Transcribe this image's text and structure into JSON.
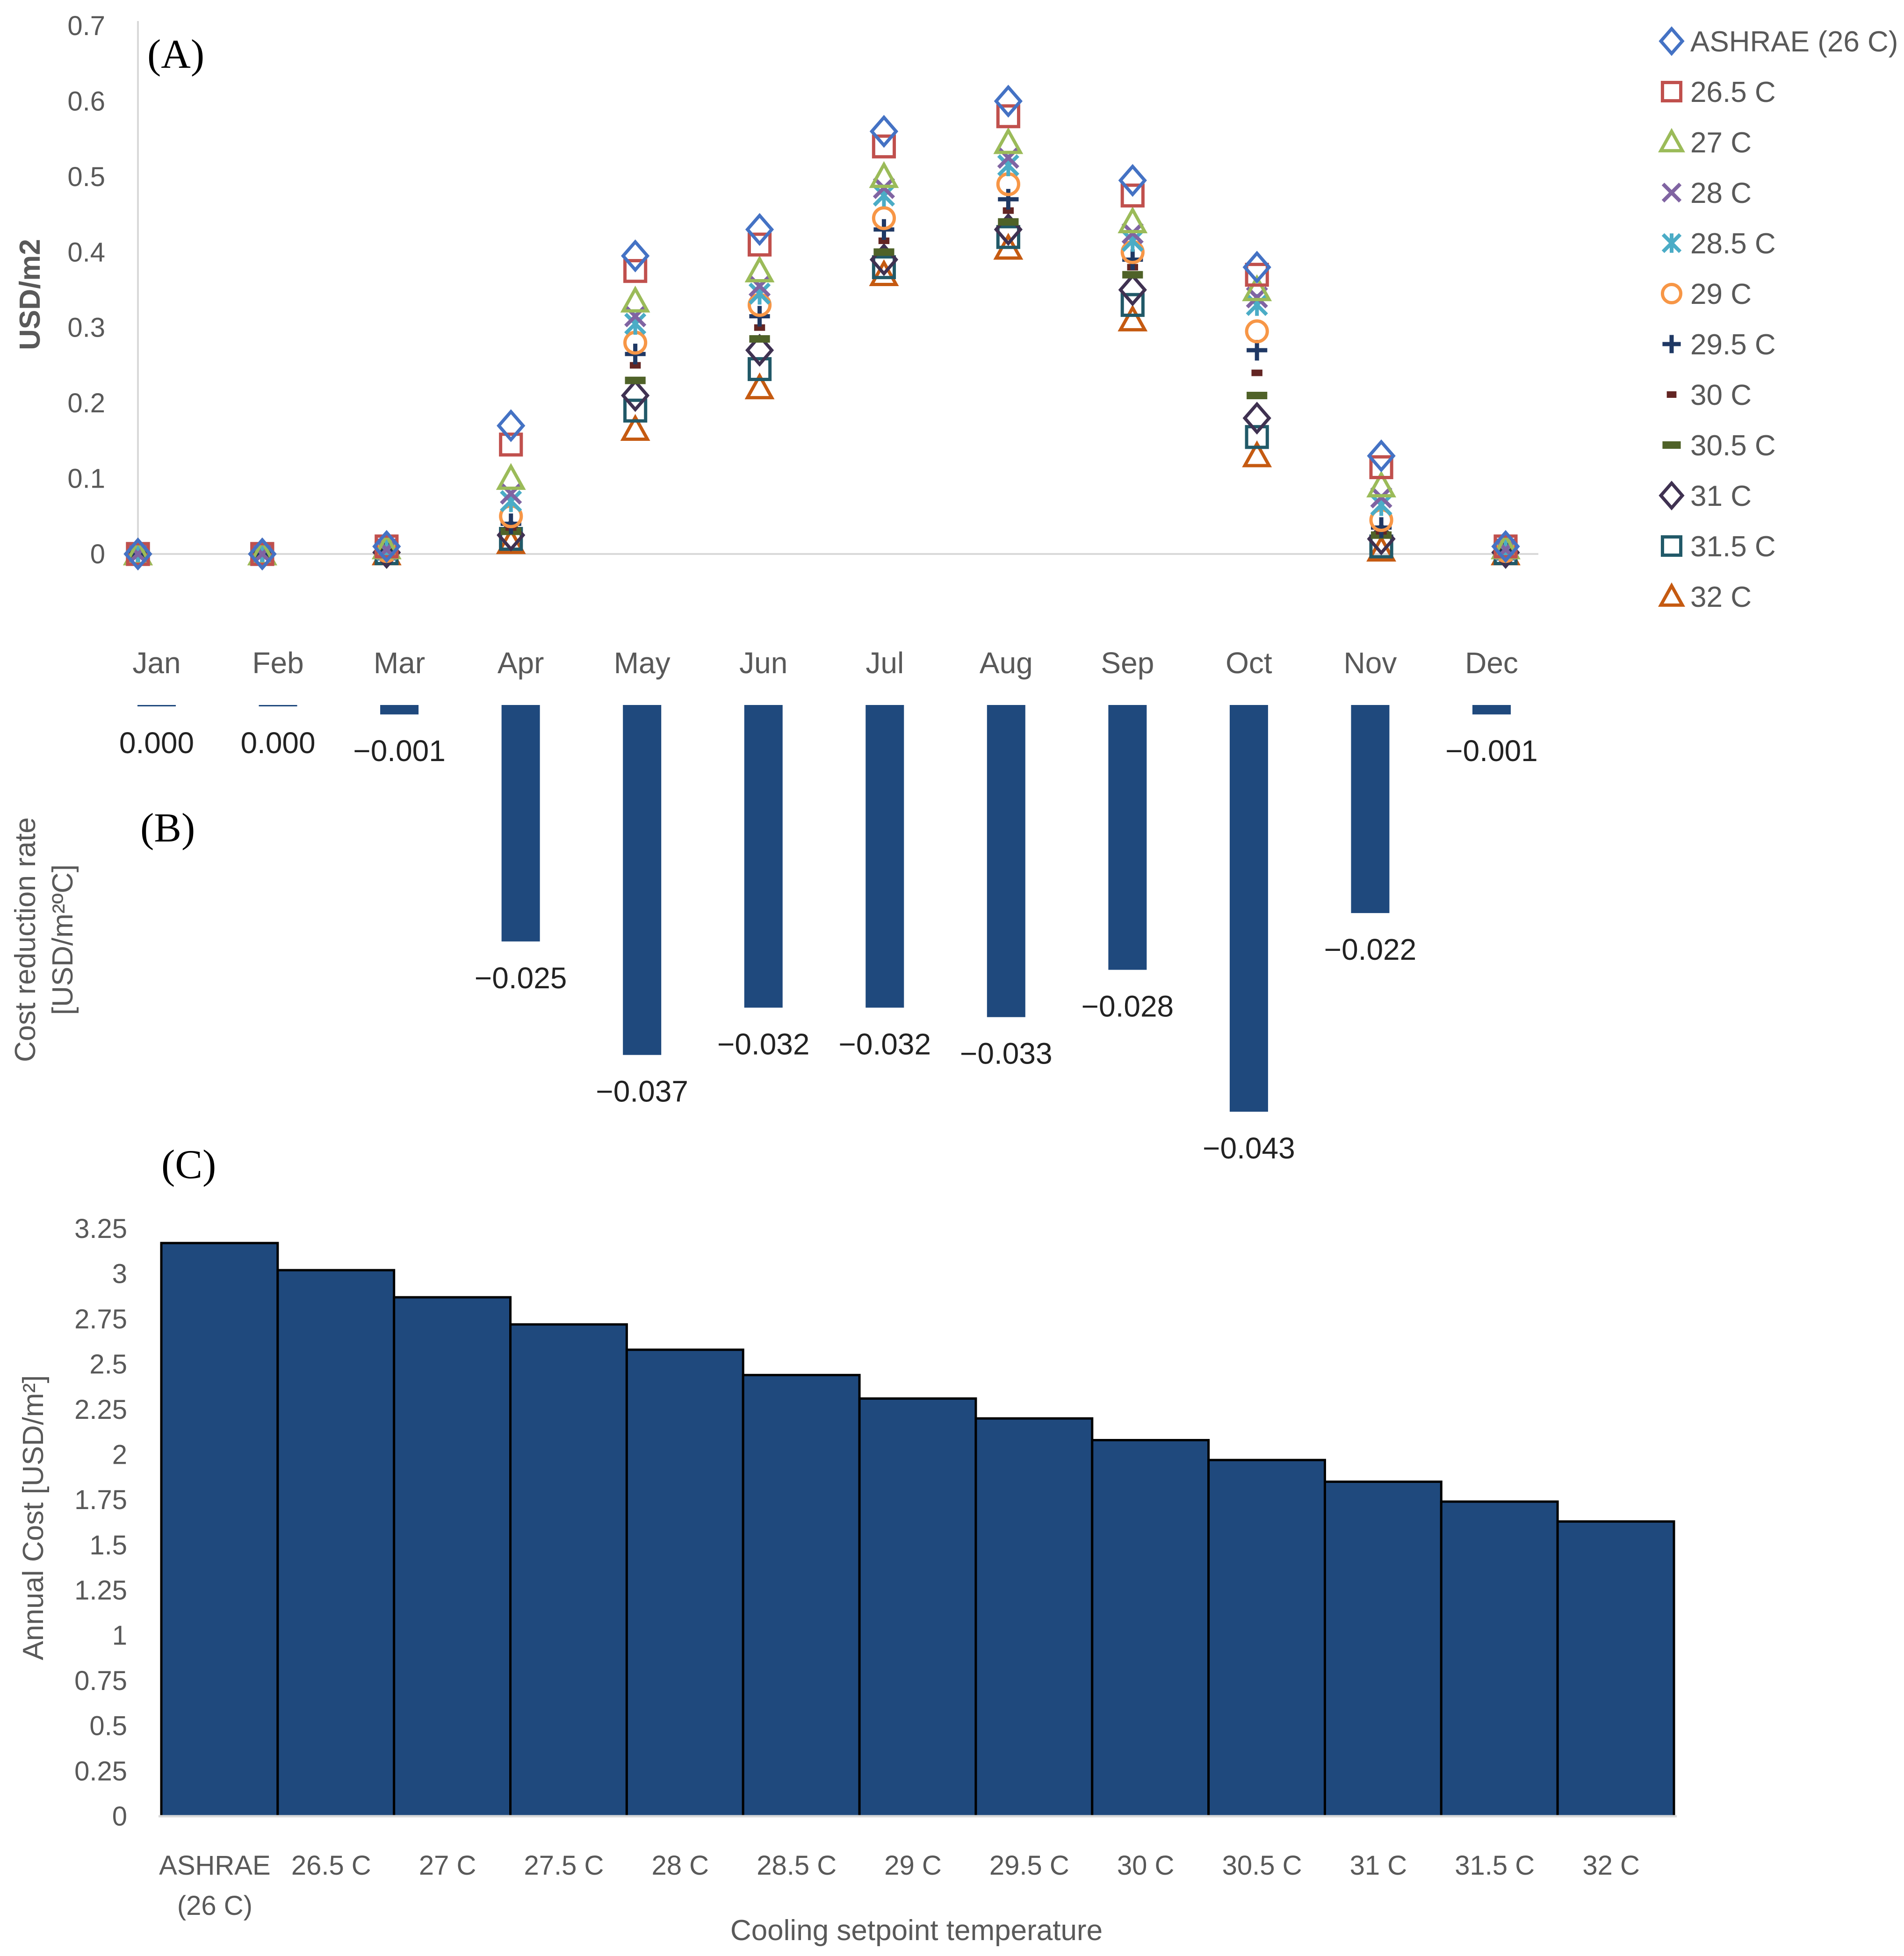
{
  "chart_data": [
    {
      "panel": "(A)",
      "type": "scatter",
      "title": "",
      "xlabel": "",
      "ylabel": "USD/m2",
      "ylim": [
        0,
        0.7
      ],
      "yticks": [
        "0",
        "0.1",
        "0.2",
        "0.3",
        "0.4",
        "0.5",
        "0.6",
        "0.7"
      ],
      "categories": [
        "Jan",
        "Feb",
        "Mar",
        "Apr",
        "May",
        "Jun",
        "Jul",
        "Aug",
        "Sep",
        "Oct",
        "Nov",
        "Dec"
      ],
      "legend_position": "right",
      "grid": false,
      "series": [
        {
          "name": "ASHRAE (26 C)",
          "marker": "diamond",
          "color": "#4472C4",
          "values": [
            0,
            0,
            0.01,
            0.17,
            0.395,
            0.43,
            0.56,
            0.6,
            0.495,
            0.38,
            0.13,
            0.01
          ]
        },
        {
          "name": "26.5 C",
          "marker": "square",
          "color": "#C0504D",
          "values": [
            0,
            0,
            0.01,
            0.145,
            0.375,
            0.41,
            0.54,
            0.58,
            0.475,
            0.37,
            0.115,
            0.01
          ]
        },
        {
          "name": "27 C",
          "marker": "triangle",
          "color": "#9BBB59",
          "values": [
            0,
            0,
            0.008,
            0.1,
            0.335,
            0.375,
            0.5,
            0.545,
            0.44,
            0.35,
            0.09,
            0.008
          ]
        },
        {
          "name": "28 C",
          "marker": "x",
          "color": "#8064A2",
          "values": [
            0,
            0,
            0.006,
            0.08,
            0.315,
            0.355,
            0.485,
            0.525,
            0.425,
            0.34,
            0.075,
            0.006
          ]
        },
        {
          "name": "28.5 C",
          "marker": "star",
          "color": "#4BACC6",
          "values": [
            0,
            0,
            0.005,
            0.07,
            0.305,
            0.345,
            0.475,
            0.515,
            0.415,
            0.33,
            0.065,
            0.005
          ]
        },
        {
          "name": "29 C",
          "marker": "circle",
          "color": "#F79646",
          "values": [
            0,
            0,
            0.004,
            0.05,
            0.28,
            0.33,
            0.445,
            0.49,
            0.4,
            0.295,
            0.045,
            0.004
          ]
        },
        {
          "name": "29.5 C",
          "marker": "plus",
          "color": "#1F3864",
          "values": [
            0,
            0,
            0.003,
            0.04,
            0.265,
            0.315,
            0.43,
            0.47,
            0.39,
            0.27,
            0.035,
            0.003
          ]
        },
        {
          "name": "30 C",
          "marker": "dash",
          "color": "#632523",
          "values": [
            0,
            0,
            0.003,
            0.035,
            0.25,
            0.3,
            0.415,
            0.455,
            0.38,
            0.24,
            0.03,
            0.003
          ]
        },
        {
          "name": "30.5 C",
          "marker": "dash-wide",
          "color": "#4F6228",
          "values": [
            0,
            0,
            0.002,
            0.03,
            0.23,
            0.285,
            0.4,
            0.44,
            0.37,
            0.21,
            0.025,
            0.002
          ]
        },
        {
          "name": "31 C",
          "marker": "diamond",
          "color": "#3F3151",
          "values": [
            0,
            0,
            0.002,
            0.025,
            0.21,
            0.27,
            0.39,
            0.43,
            0.35,
            0.18,
            0.02,
            0.002
          ]
        },
        {
          "name": "31.5 C",
          "marker": "square",
          "color": "#215968",
          "values": [
            0,
            0,
            0.001,
            0.02,
            0.19,
            0.245,
            0.38,
            0.42,
            0.33,
            0.155,
            0.01,
            0.001
          ]
        },
        {
          "name": "32 C",
          "marker": "triangle",
          "color": "#C55A11",
          "values": [
            0,
            0,
            0,
            0.015,
            0.165,
            0.22,
            0.37,
            0.405,
            0.31,
            0.13,
            0.005,
            0
          ]
        }
      ]
    },
    {
      "panel": "(B)",
      "type": "bar",
      "title": "",
      "xlabel": "",
      "ylabel_lines": [
        "Cost reduction rate",
        "[USD/m²ºC]"
      ],
      "categories": [
        "Jan",
        "Feb",
        "Mar",
        "Apr",
        "May",
        "Jun",
        "Jul",
        "Aug",
        "Sep",
        "Oct",
        "Nov",
        "Dec"
      ],
      "values": [
        0.0,
        0.0,
        -0.001,
        -0.025,
        -0.037,
        -0.032,
        -0.032,
        -0.033,
        -0.028,
        -0.043,
        -0.022,
        -0.001
      ],
      "data_labels": [
        "0.000",
        "0.000",
        "−0.001",
        "−0.025",
        "−0.037",
        "−0.032",
        "−0.032",
        "−0.033",
        "−0.028",
        "−0.043",
        "−0.022",
        "−0.001"
      ],
      "ylim": [
        -0.043,
        0
      ],
      "color": "#1F497D"
    },
    {
      "panel": "(C)",
      "type": "bar",
      "title": "",
      "xlabel": "Cooling setpoint temperature",
      "ylabel": "Annual Cost [USD/m²]",
      "ylim": [
        0,
        3.25
      ],
      "yticks": [
        "0",
        "0.25",
        "0.5",
        "0.75",
        "1",
        "1.25",
        "1.5",
        "1.75",
        "2",
        "2.25",
        "2.5",
        "2.75",
        "3",
        "3.25"
      ],
      "categories": [
        [
          "ASHRAE",
          "(26 C)"
        ],
        [
          "26.5 C"
        ],
        [
          "27 C"
        ],
        [
          "27.5 C"
        ],
        [
          "28 C"
        ],
        [
          "28.5 C"
        ],
        [
          "29 C"
        ],
        [
          "29.5 C"
        ],
        [
          "30 C"
        ],
        [
          "30.5 C"
        ],
        [
          "31 C"
        ],
        [
          "31.5 C"
        ],
        [
          "32 C"
        ]
      ],
      "values": [
        3.17,
        3.02,
        2.87,
        2.72,
        2.58,
        2.44,
        2.31,
        2.2,
        2.08,
        1.97,
        1.85,
        1.74,
        1.63
      ],
      "color": "#1F497D"
    }
  ]
}
